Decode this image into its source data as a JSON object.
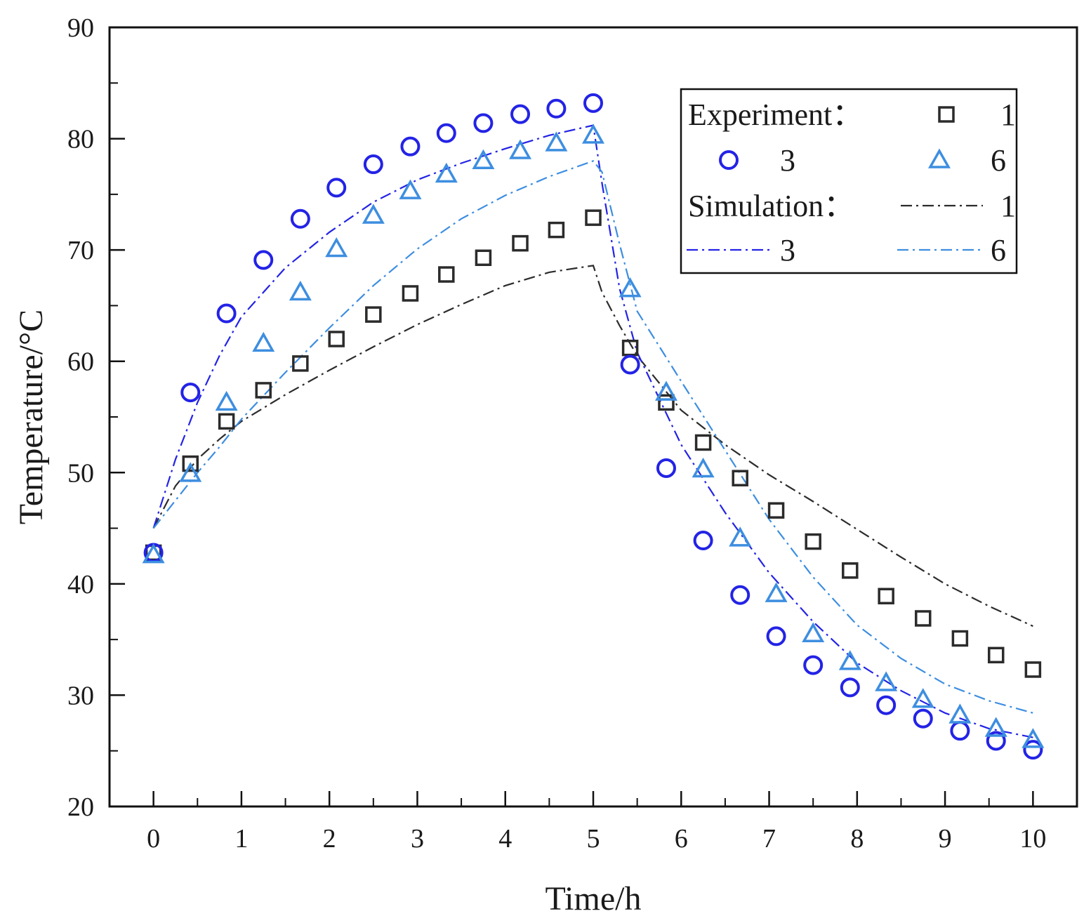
{
  "chart_data": {
    "type": "scatter",
    "title": "",
    "xlabel": "Time/h",
    "ylabel": "Temperature/°C",
    "xlim": [
      -0.5,
      10.5
    ],
    "ylim": [
      20,
      90
    ],
    "xticks": [
      0,
      1,
      2,
      3,
      4,
      5,
      6,
      7,
      8,
      9,
      10
    ],
    "yticks": [
      20,
      30,
      40,
      50,
      60,
      70,
      80,
      90
    ],
    "legend": {
      "position": "top-right",
      "experiment_header": "Experiment：",
      "simulation_header": "Simulation："
    },
    "experiment_series": [
      {
        "name": "1",
        "marker": "square",
        "color": "#2b2b2b",
        "x": [
          0,
          0.42,
          0.83,
          1.25,
          1.67,
          2.08,
          2.5,
          2.92,
          3.33,
          3.75,
          4.17,
          4.58,
          5,
          5.42,
          5.83,
          6.25,
          6.67,
          7.08,
          7.5,
          7.92,
          8.33,
          8.75,
          9.17,
          9.58,
          10
        ],
        "y": [
          42.8,
          50.8,
          54.6,
          57.4,
          59.8,
          62.0,
          64.2,
          66.1,
          67.8,
          69.3,
          70.6,
          71.8,
          72.9,
          61.2,
          56.3,
          52.7,
          49.5,
          46.6,
          43.8,
          41.2,
          38.9,
          36.9,
          35.1,
          33.6,
          32.3
        ]
      },
      {
        "name": "3",
        "marker": "circle",
        "color": "#2323e6",
        "x": [
          0,
          0.42,
          0.83,
          1.25,
          1.67,
          2.08,
          2.5,
          2.92,
          3.33,
          3.75,
          4.17,
          4.58,
          5,
          5.42,
          5.83,
          6.25,
          6.67,
          7.08,
          7.5,
          7.92,
          8.33,
          8.75,
          9.17,
          9.58,
          10
        ],
        "y": [
          42.8,
          57.2,
          64.3,
          69.1,
          72.8,
          75.6,
          77.7,
          79.3,
          80.5,
          81.4,
          82.2,
          82.7,
          83.2,
          59.7,
          50.4,
          43.9,
          39.0,
          35.3,
          32.7,
          30.7,
          29.1,
          27.9,
          26.8,
          25.9,
          25.1
        ]
      },
      {
        "name": "6",
        "marker": "triangle",
        "color": "#3d8ee0",
        "x": [
          0,
          0.42,
          0.83,
          1.25,
          1.67,
          2.08,
          2.5,
          2.92,
          3.33,
          3.75,
          4.17,
          4.58,
          5,
          5.42,
          5.83,
          6.25,
          6.67,
          7.08,
          7.5,
          7.92,
          8.33,
          8.75,
          9.17,
          9.58,
          10
        ],
        "y": [
          42.6,
          49.9,
          56.3,
          61.6,
          66.2,
          70.1,
          73.1,
          75.3,
          76.8,
          78.0,
          78.9,
          79.6,
          80.3,
          66.5,
          57.2,
          50.3,
          44.1,
          39.1,
          35.5,
          33.0,
          31.1,
          29.6,
          28.2,
          27.0,
          26.0
        ]
      }
    ],
    "simulation_series": [
      {
        "name": "1",
        "style": "dash-dot",
        "color": "#2b2b2b",
        "x": [
          0,
          0.25,
          0.5,
          0.75,
          1,
          1.5,
          2,
          2.5,
          3,
          3.5,
          4,
          4.5,
          5,
          5.1,
          5.3,
          5.5,
          6,
          6.5,
          7,
          7.5,
          8,
          8.5,
          9,
          9.5,
          10
        ],
        "y": [
          45.0,
          48.8,
          51.2,
          53.0,
          54.6,
          57.0,
          59.2,
          61.3,
          63.3,
          65.1,
          66.8,
          68.0,
          68.6,
          66.2,
          63.2,
          60.5,
          55.6,
          52.5,
          49.8,
          47.4,
          44.9,
          42.4,
          40.0,
          38.0,
          36.2
        ]
      },
      {
        "name": "3",
        "style": "dash-dot",
        "color": "#2323e6",
        "x": [
          0,
          0.25,
          0.5,
          0.75,
          1,
          1.5,
          2,
          2.5,
          3,
          3.5,
          4,
          4.5,
          5,
          5.1,
          5.3,
          5.5,
          6,
          6.5,
          7,
          7.5,
          8,
          8.5,
          9,
          9.5,
          10
        ],
        "y": [
          45.0,
          51.2,
          56.3,
          60.5,
          64.0,
          68.4,
          71.6,
          74.3,
          76.3,
          77.8,
          79.1,
          80.3,
          81.2,
          76.0,
          66.5,
          60.8,
          52.5,
          46.4,
          41.0,
          36.6,
          32.9,
          30.4,
          28.4,
          27.0,
          26.2
        ]
      },
      {
        "name": "6",
        "style": "dash-dot",
        "color": "#3d8ee0",
        "x": [
          0,
          0.25,
          0.5,
          0.75,
          1,
          1.5,
          2,
          2.5,
          3,
          3.5,
          4,
          4.5,
          5,
          5.1,
          5.3,
          5.5,
          6,
          6.5,
          7,
          7.5,
          8,
          8.5,
          9,
          9.5,
          10
        ],
        "y": [
          45.0,
          47.5,
          50.0,
          52.3,
          54.8,
          59.0,
          63.0,
          66.8,
          70.1,
          72.8,
          74.9,
          76.6,
          78.0,
          77.0,
          70.5,
          64.5,
          58.2,
          52.0,
          45.8,
          40.6,
          36.3,
          33.3,
          31.0,
          29.5,
          28.4
        ]
      }
    ]
  }
}
